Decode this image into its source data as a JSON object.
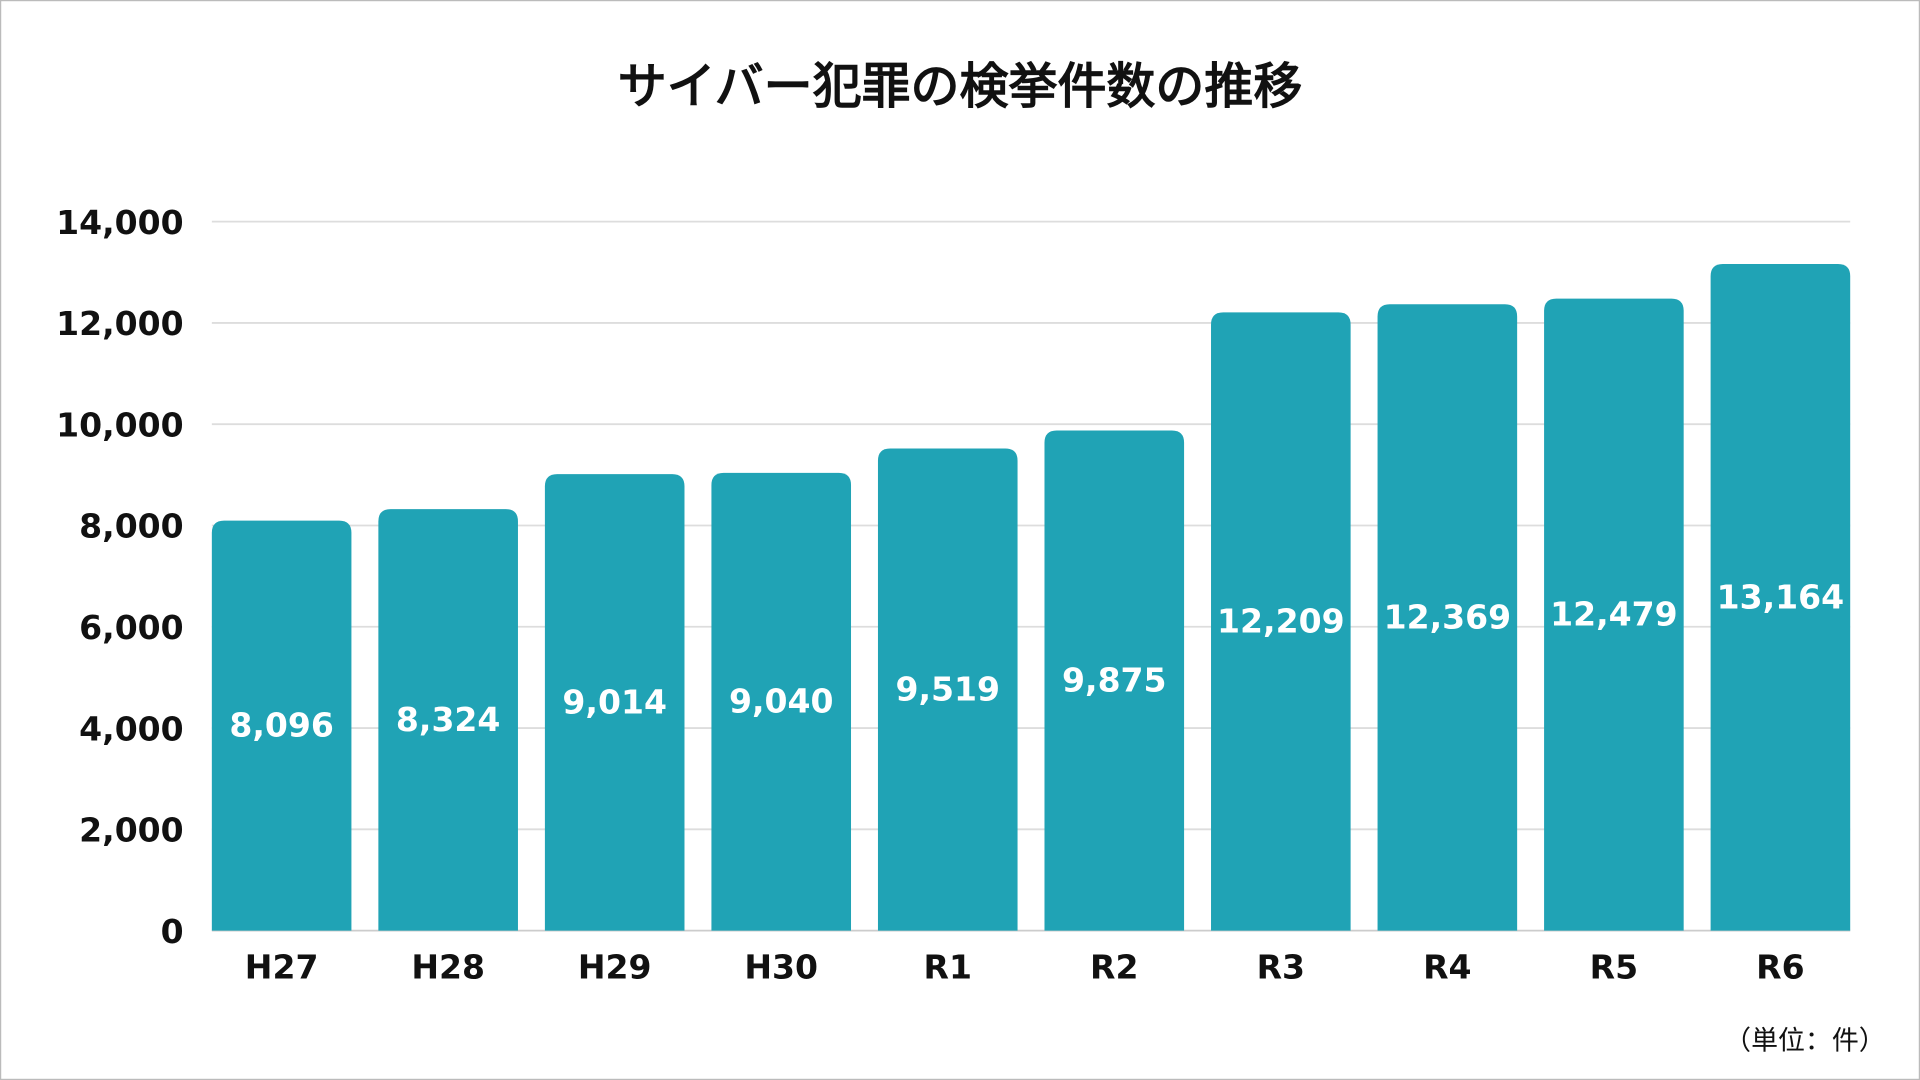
{
  "chart_data": {
    "type": "bar",
    "title": "サイバー犯罪の検挙件数の推移",
    "unit_note": "（単位：件）",
    "categories": [
      "H27",
      "H28",
      "H29",
      "H30",
      "R1",
      "R2",
      "R3",
      "R4",
      "R5",
      "R6"
    ],
    "values": [
      8096,
      8324,
      9014,
      9040,
      9519,
      9875,
      12209,
      12369,
      12479,
      13164
    ],
    "value_labels": [
      "8,096",
      "8,324",
      "9,014",
      "9,040",
      "9,519",
      "9,875",
      "12,209",
      "12,369",
      "12,479",
      "13,164"
    ],
    "ylim": [
      0,
      14000
    ],
    "yticks": [
      0,
      2000,
      4000,
      6000,
      8000,
      10000,
      12000,
      14000
    ],
    "ytick_labels": [
      "0",
      "2,000",
      "4,000",
      "6,000",
      "8,000",
      "10,000",
      "12,000",
      "14,000"
    ],
    "grid": true,
    "legend": "none",
    "colors": {
      "bar": "#20a3b5",
      "grid": "#dddddd",
      "border": "#bbbbbb"
    }
  }
}
